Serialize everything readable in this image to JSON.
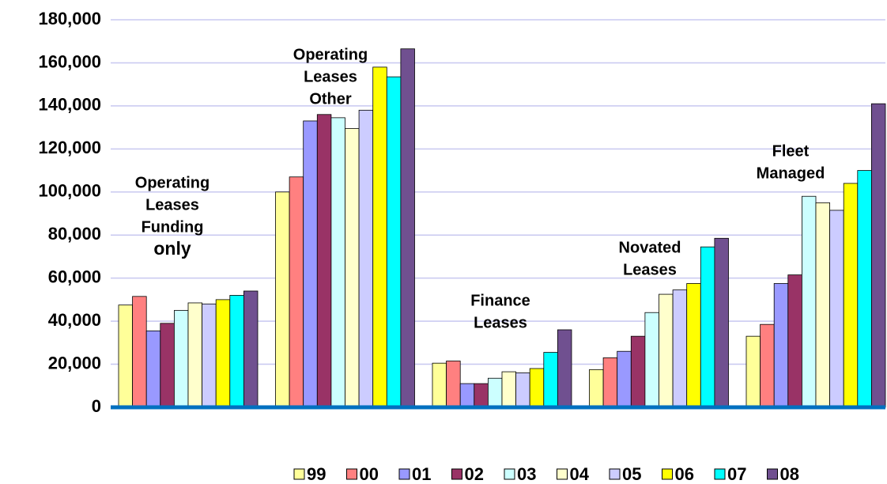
{
  "chart_data": {
    "type": "bar",
    "categories": [
      null,
      null,
      null,
      null,
      null
    ],
    "annotations": [
      [
        "Operating",
        "Leases",
        "Funding",
        "only"
      ],
      [
        "Operating",
        "Leases",
        "Other"
      ],
      [
        "Finance",
        "Leases"
      ],
      [
        "Novated",
        "Leases"
      ],
      [
        "Fleet",
        "Managed"
      ]
    ],
    "series": [
      {
        "name": "99",
        "color": "#ffff99",
        "values": [
          47500,
          100000,
          20500,
          17500,
          33000
        ]
      },
      {
        "name": "00",
        "color": "#ff8080",
        "values": [
          51500,
          107000,
          21500,
          23000,
          38500
        ]
      },
      {
        "name": "01",
        "color": "#9999ff",
        "values": [
          35500,
          133000,
          11000,
          26000,
          57500
        ]
      },
      {
        "name": "02",
        "color": "#993366",
        "values": [
          39000,
          136000,
          11000,
          33000,
          61500
        ]
      },
      {
        "name": "03",
        "color": "#ccffff",
        "values": [
          45000,
          134500,
          13500,
          44000,
          98000
        ]
      },
      {
        "name": "04",
        "color": "#ffffcc",
        "values": [
          48500,
          129500,
          16500,
          52500,
          95000
        ]
      },
      {
        "name": "05",
        "color": "#ccccff",
        "values": [
          48000,
          138000,
          16000,
          54500,
          91500
        ]
      },
      {
        "name": "06",
        "color": "#ffff00",
        "values": [
          50000,
          158000,
          18000,
          57500,
          104000
        ]
      },
      {
        "name": "07",
        "color": "#00ffff",
        "values": [
          52000,
          153500,
          25500,
          74500,
          110000
        ]
      },
      {
        "name": "08",
        "color": "#705090",
        "values": [
          54000,
          166500,
          36000,
          78500,
          141000
        ]
      }
    ],
    "ylim": [
      0,
      180000
    ],
    "yticks": [
      0,
      {
        "value": 20000,
        "label": "20,000"
      },
      {
        "value": 40000,
        "label": "40,000"
      },
      {
        "value": 60000,
        "label": "60,000"
      },
      {
        "value": 80000,
        "label": "80,000"
      },
      {
        "value": 100000,
        "label": "100,000"
      },
      {
        "value": 120000,
        "label": "120,000"
      },
      {
        "value": 140000,
        "label": "140,000"
      },
      {
        "value": 160000,
        "label": "160,000"
      },
      {
        "value": 180000,
        "label": "180,000"
      }
    ],
    "grid": true,
    "legend": "bottom"
  }
}
